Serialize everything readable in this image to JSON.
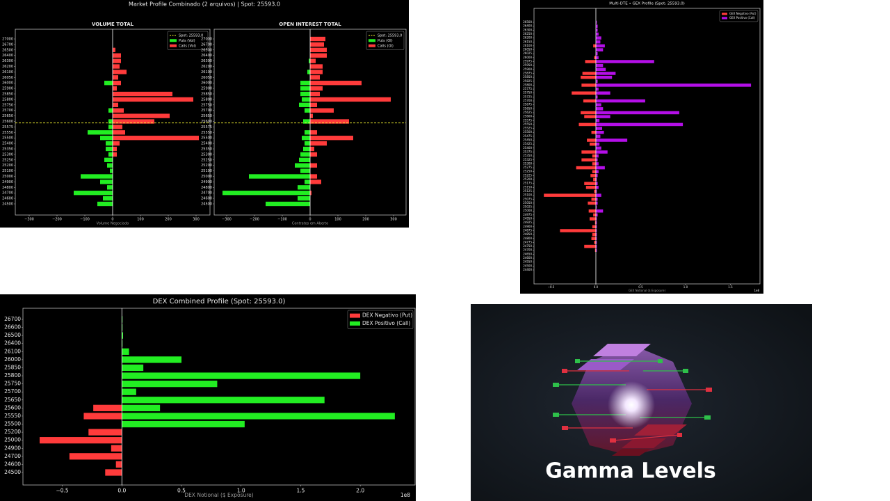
{
  "chart_data": [
    {
      "type": "barh",
      "figure_title": "Market Profile Combinado (2 arquivos) | Spot: 25593.0",
      "title": "VOLUME TOTAL",
      "xlabel": "Volume Negociado",
      "categories": [
        27000,
        26700,
        26500,
        26400,
        26300,
        26200,
        26100,
        26050,
        26000,
        25900,
        25850,
        25800,
        25750,
        25700,
        25650,
        25600,
        25575,
        25550,
        25500,
        25400,
        25350,
        25300,
        25250,
        25200,
        25100,
        25000,
        24900,
        24800,
        24700,
        24600,
        24500
      ],
      "series": [
        {
          "name": "Puts (Vol)",
          "color": "#22ee22",
          "values": [
            0,
            0,
            0,
            0,
            0,
            0,
            0,
            0,
            -30,
            0,
            0,
            0,
            0,
            -15,
            0,
            -15,
            -15,
            -90,
            -45,
            -25,
            -25,
            -15,
            -30,
            -20,
            -10,
            -115,
            -45,
            -20,
            -140,
            -35,
            -55
          ]
        },
        {
          "name": "Calls (Vol)",
          "color": "#ff3b3b",
          "values": [
            0,
            0,
            10,
            30,
            30,
            25,
            50,
            20,
            30,
            15,
            215,
            290,
            20,
            40,
            205,
            150,
            35,
            45,
            310,
            25,
            15,
            15,
            0,
            0,
            0,
            0,
            0,
            0,
            0,
            0,
            0
          ]
        }
      ],
      "spot": 25593,
      "spot_label": "Spot: 25593.0",
      "spot_color": "#ffff33",
      "xlim": [
        -350,
        350
      ],
      "xticks": [
        {
          "value": -300,
          "label": "−300"
        },
        {
          "value": -200,
          "label": "−200"
        },
        {
          "value": -100,
          "label": "−100"
        },
        0,
        100,
        200,
        300
      ],
      "legend": "upper right"
    },
    {
      "type": "barh",
      "title": "OPEN INTEREST TOTAL",
      "xlabel": "Contratos em Aberto",
      "categories": [
        27000,
        26700,
        26500,
        26400,
        26300,
        26200,
        26100,
        26050,
        26000,
        25900,
        25850,
        25800,
        25750,
        25700,
        25650,
        25600,
        25575,
        25550,
        25500,
        25400,
        25350,
        25300,
        25250,
        25200,
        25100,
        25000,
        24900,
        24800,
        24700,
        24600,
        24500
      ],
      "series": [
        {
          "name": "Puts (OI)",
          "color": "#22ee22",
          "values": [
            0,
            0,
            0,
            0,
            -5,
            0,
            -10,
            0,
            -35,
            -35,
            -35,
            -30,
            -40,
            -20,
            0,
            -25,
            0,
            -20,
            -30,
            -20,
            -25,
            -35,
            -40,
            -55,
            -35,
            -220,
            -20,
            -45,
            -315,
            -45,
            -160
          ]
        },
        {
          "name": "Calls (OI)",
          "color": "#ff3b3b",
          "values": [
            55,
            50,
            60,
            60,
            20,
            45,
            45,
            35,
            185,
            45,
            35,
            290,
            25,
            85,
            10,
            140,
            0,
            25,
            155,
            60,
            15,
            25,
            0,
            25,
            0,
            25,
            40,
            0,
            5,
            0,
            0
          ]
        }
      ],
      "spot": 25593,
      "spot_label": "Spot: 25593.0",
      "spot_color": "#ffff33",
      "xlim": [
        -345,
        345
      ],
      "xticks": [
        {
          "value": -300,
          "label": "−300"
        },
        {
          "value": -200,
          "label": "−200"
        },
        {
          "value": -100,
          "label": "−100"
        },
        0,
        100,
        200,
        300
      ],
      "legend": "upper right"
    },
    {
      "type": "barh",
      "title": "Multi-DTE • GEX Profile (Spot: 25593.0)",
      "xlabel": "GEX Notional ($ Exposure)",
      "x_offset_label": "1e8",
      "categories": [
        26500,
        26400,
        26300,
        26250,
        26200,
        26150,
        26100,
        26050,
        26025,
        26000,
        25975,
        25950,
        25900,
        25875,
        25850,
        25825,
        25800,
        25775,
        25750,
        25725,
        25700,
        25675,
        25650,
        25625,
        25600,
        25575,
        25550,
        25525,
        25500,
        25475,
        25450,
        25425,
        25400,
        25375,
        25350,
        25325,
        25300,
        25275,
        25250,
        25225,
        25200,
        25175,
        25150,
        25125,
        25100,
        25075,
        25050,
        25025,
        25000,
        24975,
        24950,
        24925,
        24900,
        24875,
        24850,
        24800,
        24775,
        24750,
        24700,
        24650,
        24600,
        24550,
        24500,
        24400
      ],
      "series": [
        {
          "name": "GEX Negativo (Put)",
          "color": "#ff3b3b",
          "values": [
            0,
            0,
            0,
            0,
            0,
            0,
            -0.03,
            0,
            0,
            -0.02,
            -0.12,
            0,
            0,
            -0.15,
            -0.17,
            0,
            -0.16,
            0,
            -0.27,
            0,
            -0.14,
            0,
            0,
            -0.17,
            -0.13,
            0,
            -0.19,
            0,
            -0.05,
            0,
            -0.1,
            -0.07,
            0,
            -0.16,
            -0.04,
            -0.16,
            -0.04,
            -0.22,
            -0.04,
            -0.06,
            -0.03,
            -0.13,
            -0.11,
            -0.02,
            -0.58,
            -0.05,
            -0.09,
            0,
            -0.08,
            -0.03,
            -0.07,
            -0.01,
            -0.04,
            -0.4,
            -0.04,
            -0.05,
            -0.02,
            -0.13,
            -0.01,
            0,
            0,
            0,
            0,
            0
          ]
        },
        {
          "name": "GEX Positivo (Call)",
          "color": "#b40fe8",
          "values": [
            0.01,
            0.02,
            0.02,
            0.03,
            0.06,
            0.05,
            0.1,
            0.08,
            0.02,
            0.03,
            0.65,
            0.08,
            0.11,
            0.22,
            0.18,
            0.02,
            1.73,
            0.03,
            0.16,
            0.02,
            0.55,
            0.06,
            0.08,
            0.93,
            0.16,
            0.04,
            0.97,
            0.07,
            0.09,
            0.05,
            0.35,
            0.04,
            0.06,
            0.13,
            0.03,
            0.02,
            0.03,
            0.1,
            0.03,
            0.02,
            0.01,
            0.02,
            0.03,
            0.01,
            0.06,
            0.02,
            0.02,
            0.01,
            0.08,
            0.02,
            0.01,
            0.01,
            0.01,
            0.01,
            0.01,
            0.01,
            0.01,
            0.01,
            0.01,
            0,
            0,
            0,
            0,
            0
          ]
        }
      ],
      "xlim": [
        -0.69,
        1.83
      ],
      "xticks": [
        {
          "value": -0.5,
          "label": "−0.5"
        },
        {
          "value": 0,
          "label": "0.0"
        },
        0.5,
        {
          "value": 1,
          "label": "1.0"
        },
        1.5
      ],
      "legend": "upper right"
    },
    {
      "type": "barh",
      "title": "DEX Combined Profile (Spot: 25593.0)",
      "xlabel": "DEX Notional ($ Exposure)",
      "x_offset_label": "1e8",
      "categories": [
        26700,
        26600,
        26500,
        26400,
        26100,
        26000,
        25850,
        25800,
        25750,
        25700,
        25650,
        25600,
        25550,
        25500,
        25200,
        25000,
        24900,
        24700,
        24600,
        24500
      ],
      "series": [
        {
          "name": "DEX Negativo (Put)",
          "color": "#ff3b3b",
          "values": [
            0,
            0,
            0,
            0,
            0,
            0,
            0,
            0,
            0,
            0,
            0,
            -0.24,
            -0.32,
            0,
            -0.28,
            -0.69,
            -0.09,
            -0.44,
            -0.05,
            -0.14
          ]
        },
        {
          "name": "DEX Positivo (Call)",
          "color": "#22ee22",
          "values": [
            0.005,
            0.005,
            0.01,
            0.005,
            0.06,
            0.5,
            0.18,
            2.0,
            0.8,
            0.12,
            1.7,
            0.32,
            2.29,
            1.03,
            0,
            0,
            0,
            0,
            0,
            0
          ]
        }
      ],
      "xlim": [
        -0.83,
        2.46
      ],
      "xticks": [
        {
          "value": -0.5,
          "label": "−0.5"
        },
        {
          "value": 0,
          "label": "0.0"
        },
        0.5,
        {
          "value": 1,
          "label": "1.0"
        },
        1.5,
        {
          "value": 2,
          "label": "2.0"
        }
      ],
      "legend": "upper right"
    }
  ],
  "logo": {
    "text": "Gamma Levels"
  }
}
